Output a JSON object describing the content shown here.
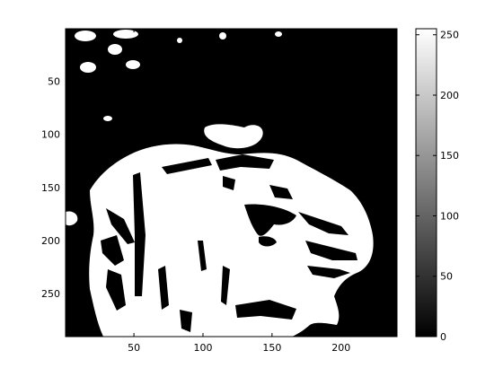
{
  "chart_data": {
    "type": "heatmap",
    "colormap": "gray",
    "image_width": 240,
    "image_height": 290,
    "x_ticks": [
      50,
      100,
      150,
      200
    ],
    "y_ticks": [
      50,
      100,
      150,
      200,
      250
    ],
    "colorbar": {
      "ticks": [
        0,
        50,
        100,
        150,
        200,
        250
      ],
      "range": [
        0,
        255
      ]
    },
    "regions": [
      {
        "name": "upper-left-speckles",
        "value": 255
      },
      {
        "name": "background",
        "value": 0
      },
      {
        "name": "garment-bright-area",
        "value": 255
      },
      {
        "name": "garment-shadow-folds",
        "value": 0
      }
    ],
    "grid": false,
    "colors": {
      "low": "#000000",
      "high": "#ffffff"
    }
  }
}
